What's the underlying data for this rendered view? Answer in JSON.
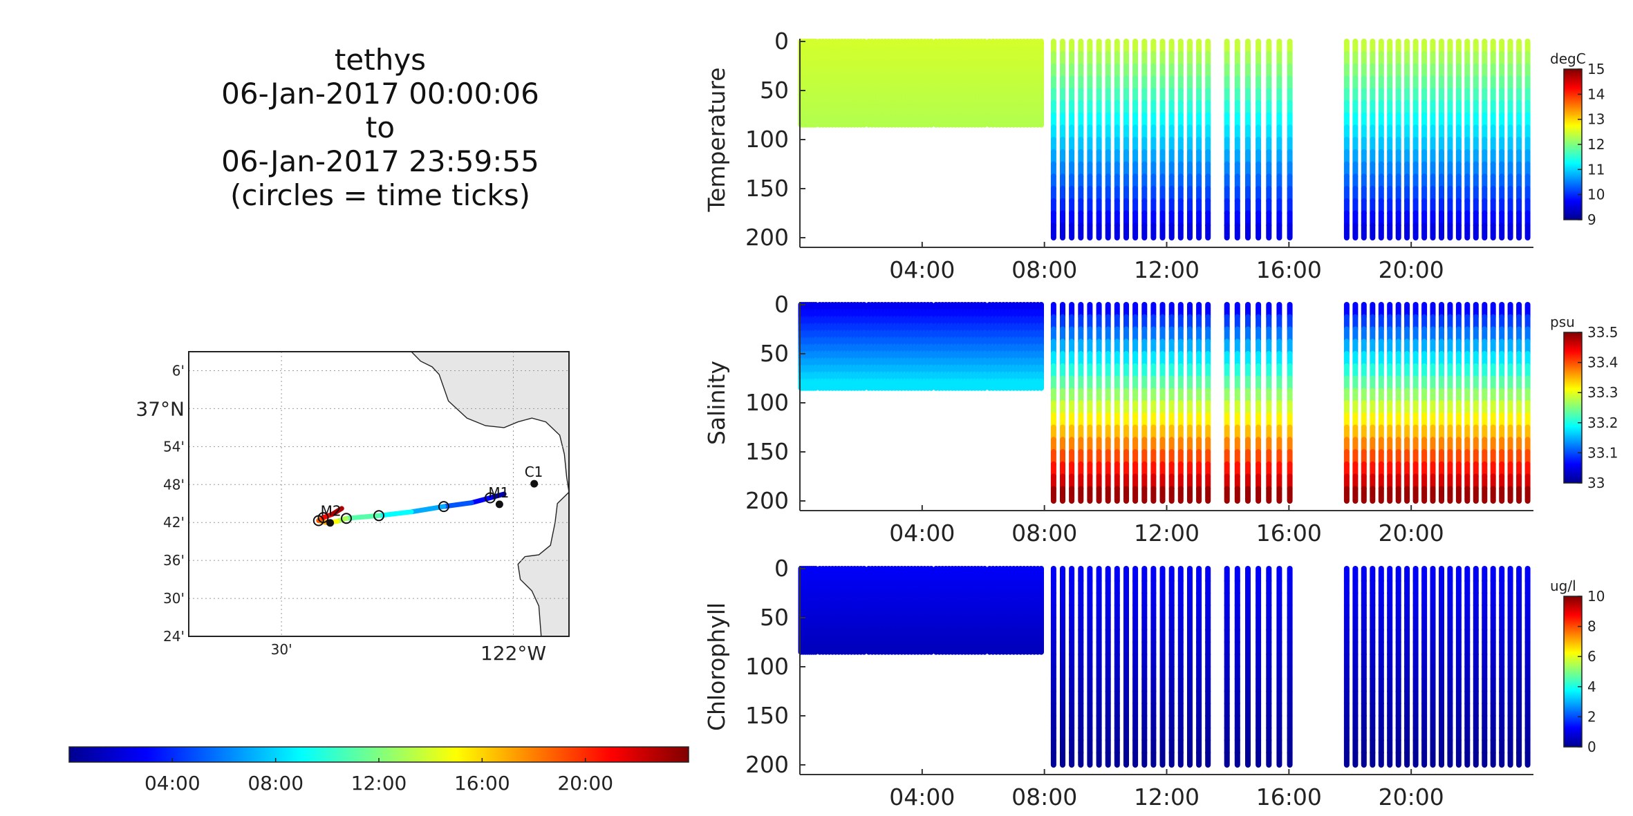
{
  "title": {
    "lines": [
      "tethys",
      "06-Jan-2017 00:00:06",
      "to",
      "06-Jan-2017 23:59:55",
      "(circles = time ticks)"
    ]
  },
  "chart_data": [
    {
      "type": "scatter",
      "name": "Temperature",
      "ylabel": "Temperature",
      "yticks": [
        "0",
        "50",
        "100",
        "150",
        "200"
      ],
      "ylim": [
        0,
        200
      ],
      "xticks": [
        "04:00",
        "08:00",
        "12:00",
        "16:00",
        "20:00"
      ],
      "xlim_hours": [
        0,
        24
      ],
      "colorbar": {
        "unit": "degC",
        "min": 9,
        "max": 15,
        "ticks": [
          "9",
          "10",
          "11",
          "12",
          "13",
          "14",
          "15"
        ]
      },
      "values": {
        "surface": 12.5,
        "bottom_deep": 9.5,
        "bottom_shallow": 12.3
      }
    },
    {
      "type": "scatter",
      "name": "Salinity",
      "ylabel": "Salinity",
      "yticks": [
        "0",
        "50",
        "100",
        "150",
        "200"
      ],
      "ylim": [
        0,
        200
      ],
      "xticks": [
        "04:00",
        "08:00",
        "12:00",
        "16:00",
        "20:00"
      ],
      "xlim_hours": [
        0,
        24
      ],
      "colorbar": {
        "unit": "psu",
        "min": 33,
        "max": 33.5,
        "ticks": [
          "33",
          "33.1",
          "33.2",
          "33.3",
          "33.4",
          "33.5"
        ]
      },
      "values": {
        "surface": 33.05,
        "bottom_deep": 33.5,
        "bottom_shallow": 33.18
      }
    },
    {
      "type": "scatter",
      "name": "Chlorophyll",
      "ylabel": "Chlorophyll",
      "yticks": [
        "0",
        "50",
        "100",
        "150",
        "200"
      ],
      "ylim": [
        0,
        200
      ],
      "xticks": [
        "04:00",
        "08:00",
        "12:00",
        "16:00",
        "20:00"
      ],
      "xlim_hours": [
        0,
        24
      ],
      "colorbar": {
        "unit": "ug/l",
        "min": 0,
        "max": 10,
        "ticks": [
          "0",
          "2",
          "4",
          "6",
          "8",
          "10"
        ]
      },
      "values": {
        "surface": 1.2,
        "bottom_deep": 0.2,
        "bottom_shallow": 0.6
      }
    },
    {
      "type": "scatter",
      "name": "track-map",
      "lat_ticks": [
        "6'",
        "37°N",
        "54'",
        "48'",
        "42'",
        "36'",
        "30'",
        "24'"
      ],
      "lon_ticks": [
        "30'",
        "122°W"
      ],
      "stations": [
        "C1",
        "M1",
        "M2"
      ],
      "track": {
        "hours": [
          0,
          2,
          4,
          6,
          8,
          10,
          12,
          14,
          16,
          18,
          20,
          22,
          24
        ],
        "lon": [
          -122.02,
          -122.05,
          -122.09,
          -122.15,
          -122.22,
          -122.29,
          -122.36,
          -122.38,
          -122.4,
          -122.42,
          -122.41,
          -122.39,
          -122.37
        ],
        "lat": [
          36.775,
          36.765,
          36.752,
          36.742,
          36.728,
          36.718,
          36.711,
          36.703,
          36.699,
          36.705,
          36.713,
          36.722,
          36.737
        ]
      }
    },
    {
      "type": "colorbar",
      "name": "time-colorbar",
      "ticks": [
        "04:00",
        "08:00",
        "12:00",
        "16:00",
        "20:00"
      ],
      "range_hours": [
        0,
        24
      ]
    }
  ]
}
